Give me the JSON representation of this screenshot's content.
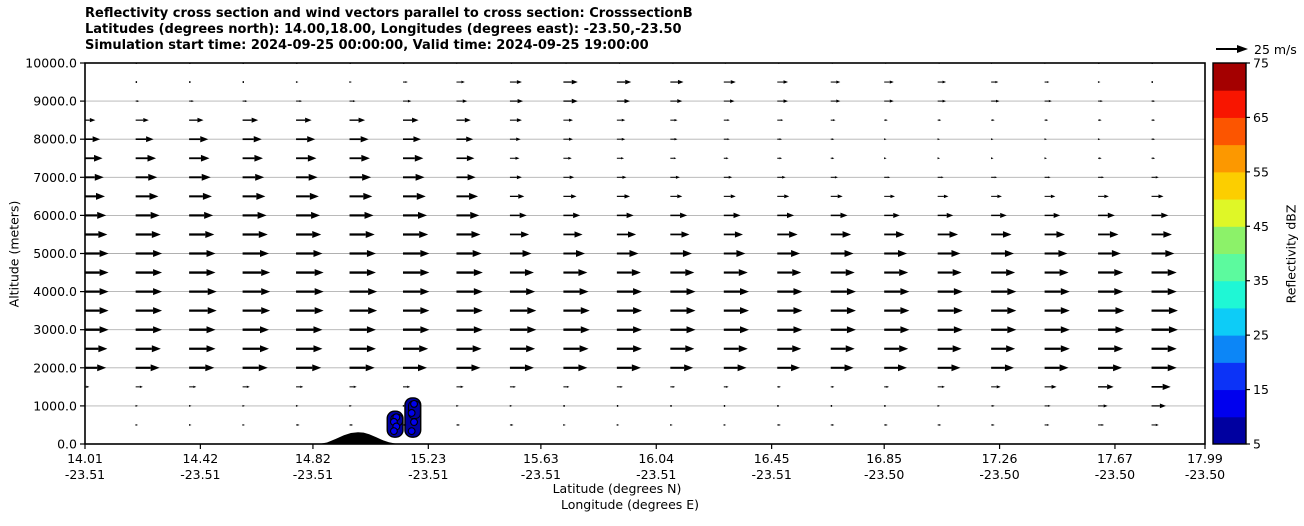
{
  "header": {
    "line1": "Reflectivity cross section and wind vectors parallel to cross section: CrosssectionB",
    "line2": "Latitudes (degrees north): 14.00,18.00, Longitudes (degrees east): -23.50,-23.50",
    "line3": "Simulation start time: 2024-09-25 00:00:00, Valid time: 2024-09-25 19:00:00"
  },
  "reference_arrow": {
    "label": "25 m/s",
    "speed_ms": 25
  },
  "colorbar": {
    "label": "Reflectivity dBZ",
    "tick_labels": [
      "5",
      "15",
      "25",
      "35",
      "45",
      "55",
      "65",
      "75"
    ],
    "tick_values": [
      5,
      15,
      25,
      35,
      45,
      55,
      65,
      75
    ],
    "levels_dbz": [
      5,
      10,
      15,
      20,
      25,
      30,
      35,
      40,
      45,
      50,
      55,
      60,
      65,
      70,
      75
    ],
    "colors": [
      "#0000a0",
      "#0000ee",
      "#0c33f7",
      "#0c86f7",
      "#0dccf7",
      "#1ff7d5",
      "#5cfa9e",
      "#8cf269",
      "#dff727",
      "#fcce00",
      "#fc9800",
      "#fc5500",
      "#f81500",
      "#a40000"
    ]
  },
  "axes": {
    "y": {
      "label": "Altitude (meters)",
      "tick_labels": [
        "0.0",
        "1000.0",
        "2000.0",
        "3000.0",
        "4000.0",
        "5000.0",
        "6000.0",
        "7000.0",
        "8000.0",
        "9000.0",
        "10000.0"
      ],
      "tick_values": [
        0,
        1000,
        2000,
        3000,
        4000,
        5000,
        6000,
        7000,
        8000,
        9000,
        10000
      ]
    },
    "x": {
      "label_line1": "Latitude (degrees N)",
      "label_line2": "Longitude (degrees E)",
      "tick_values": [
        14.01,
        14.42,
        14.82,
        15.23,
        15.63,
        16.04,
        16.45,
        16.85,
        17.26,
        17.67,
        17.99
      ],
      "tick_labels_lat": [
        "14.01",
        "14.42",
        "14.82",
        "15.23",
        "15.63",
        "16.04",
        "16.45",
        "16.85",
        "17.26",
        "17.67",
        "17.99"
      ],
      "tick_labels_lon": [
        "-23.51",
        "-23.51",
        "-23.51",
        "-23.51",
        "-23.51",
        "-23.51",
        "-23.51",
        "-23.50",
        "-23.50",
        "-23.50",
        "-23.50"
      ]
    }
  },
  "chart_data": {
    "type": "quiver_cross_section",
    "title": "Reflectivity cross section and wind vectors parallel to cross section: CrosssectionB",
    "xlabel": "Latitude (degrees N) / Longitude (degrees E)",
    "ylabel": "Altitude (meters)",
    "xlim": [
      14.01,
      17.99
    ],
    "ylim": [
      0,
      10000
    ],
    "grid": "horizontal-only",
    "gridline_color": "#b0b0b0",
    "reference_speed_ms": 25,
    "wind_field": {
      "units": "m/s",
      "altitudes_m": [
        10000,
        9500,
        9000,
        8500,
        8000,
        7500,
        7000,
        6500,
        6000,
        5500,
        5000,
        4500,
        4000,
        3500,
        3000,
        2500,
        2000,
        1500,
        1000,
        500
      ],
      "latitudes_deg": [
        14.0,
        14.19,
        14.38,
        14.57,
        14.76,
        14.95,
        15.14,
        15.33,
        15.52,
        15.71,
        15.9,
        16.09,
        16.28,
        16.47,
        16.66,
        16.85,
        17.04,
        17.23,
        17.42,
        17.61,
        17.8,
        17.99
      ],
      "speeds_ms": [
        [
          0,
          0,
          0,
          0,
          0,
          0,
          0,
          2,
          3,
          4,
          4,
          4,
          3,
          3,
          3,
          3,
          3,
          2,
          2,
          1,
          1,
          1
        ],
        [
          1,
          1,
          1,
          1,
          2,
          2,
          4,
          7,
          10,
          12,
          12,
          11,
          10,
          9,
          8,
          8,
          7,
          6,
          4,
          2,
          1,
          1
        ],
        [
          3,
          3,
          4,
          4,
          5,
          5,
          7,
          9,
          11,
          12,
          11,
          10,
          9,
          9,
          8,
          8,
          7,
          7,
          6,
          4,
          3,
          3
        ],
        [
          11,
          11,
          12,
          13,
          13,
          13,
          13,
          12,
          10,
          8,
          7,
          6,
          5,
          5,
          4,
          3,
          3,
          3,
          3,
          3,
          3,
          3
        ],
        [
          15,
          15,
          16,
          16,
          16,
          16,
          15,
          14,
          9,
          8,
          7,
          6,
          5,
          4,
          3,
          2,
          2,
          2,
          2,
          2,
          3,
          3
        ],
        [
          17,
          17,
          17,
          17,
          17,
          17,
          17,
          15,
          8,
          7,
          6,
          5,
          4,
          4,
          3,
          2,
          2,
          2,
          2,
          3,
          3,
          3
        ],
        [
          18,
          18,
          18,
          18,
          18,
          18,
          18,
          16,
          10,
          9,
          8,
          8,
          7,
          7,
          6,
          5,
          5,
          5,
          5,
          5,
          6,
          6
        ],
        [
          19,
          19,
          19,
          19,
          19,
          19,
          19,
          18,
          12,
          11,
          11,
          10,
          10,
          10,
          10,
          9,
          9,
          9,
          9,
          9,
          10,
          10
        ],
        [
          20,
          20,
          20,
          20,
          20,
          20,
          20,
          19,
          14,
          14,
          14,
          14,
          14,
          14,
          14,
          13,
          13,
          13,
          13,
          14,
          14,
          14
        ],
        [
          21,
          21,
          21,
          21,
          21,
          21,
          21,
          20,
          16,
          16,
          16,
          16,
          16,
          17,
          17,
          17,
          17,
          17,
          17,
          17,
          17,
          17
        ],
        [
          22,
          22,
          22,
          22,
          22,
          22,
          22,
          21,
          18,
          18,
          18,
          18,
          18,
          19,
          19,
          19,
          19,
          19,
          19,
          19,
          19,
          20
        ],
        [
          22,
          22,
          22,
          23,
          23,
          22,
          22,
          22,
          20,
          20,
          20,
          20,
          20,
          20,
          20,
          20,
          20,
          20,
          20,
          21,
          21,
          21
        ],
        [
          22,
          22,
          23,
          23,
          23,
          23,
          22,
          22,
          21,
          21,
          21,
          21,
          21,
          21,
          21,
          21,
          21,
          21,
          21,
          21,
          21,
          22
        ],
        [
          22,
          22,
          23,
          23,
          23,
          23,
          22,
          22,
          22,
          22,
          21,
          21,
          21,
          21,
          21,
          21,
          21,
          21,
          21,
          22,
          22,
          22
        ],
        [
          22,
          22,
          22,
          22,
          22,
          22,
          22,
          22,
          22,
          22,
          21,
          21,
          21,
          21,
          21,
          21,
          21,
          21,
          21,
          22,
          22,
          22
        ],
        [
          21,
          21,
          22,
          22,
          22,
          22,
          21,
          21,
          21,
          21,
          21,
          20,
          20,
          20,
          20,
          20,
          20,
          20,
          21,
          21,
          21,
          21
        ],
        [
          20,
          20,
          21,
          21,
          21,
          21,
          20,
          20,
          20,
          20,
          20,
          19,
          19,
          19,
          19,
          19,
          19,
          19,
          20,
          20,
          21,
          21
        ],
        [
          6,
          6,
          6,
          6,
          6,
          6,
          6,
          6,
          5,
          5,
          5,
          4,
          4,
          3,
          3,
          4,
          6,
          8,
          10,
          13,
          16,
          18
        ],
        [
          2,
          2,
          2,
          2,
          2,
          2,
          2,
          2,
          2,
          1,
          1,
          1,
          1,
          1,
          1,
          1,
          2,
          3,
          5,
          8,
          12,
          16
        ],
        [
          2,
          2,
          2,
          2,
          3,
          3,
          3,
          3,
          3,
          2,
          2,
          2,
          2,
          3,
          3,
          3,
          3,
          3,
          4,
          5,
          6,
          8
        ]
      ]
    },
    "terrain_profile": {
      "color": "#000000",
      "points_lat_altm": [
        [
          14.84,
          0
        ],
        [
          14.87,
          40
        ],
        [
          14.9,
          130
        ],
        [
          14.93,
          230
        ],
        [
          14.955,
          290
        ],
        [
          14.98,
          310
        ],
        [
          15.0,
          300
        ],
        [
          15.02,
          255
        ],
        [
          15.045,
          175
        ],
        [
          15.07,
          95
        ],
        [
          15.09,
          45
        ],
        [
          15.11,
          15
        ],
        [
          15.13,
          0
        ]
      ]
    },
    "reflectivity_cells": [
      {
        "lat_center": 15.112,
        "lat_halfwidth": 0.028,
        "alt_bottom_m": 180,
        "alt_top_m": 860,
        "outer_dbz": 5,
        "core_dbz": 12,
        "beads": 4
      },
      {
        "lat_center": 15.175,
        "lat_halfwidth": 0.028,
        "alt_bottom_m": 180,
        "alt_top_m": 1210,
        "outer_dbz": 5,
        "core_dbz": 14,
        "beads": 4
      }
    ]
  }
}
